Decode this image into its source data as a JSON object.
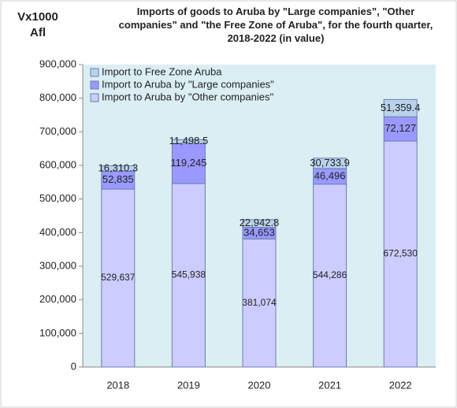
{
  "chart_data": {
    "type": "stacked_bar",
    "title": "Imports of goods to Aruba by \"Large companies\", \"Other companies\" and \"the Free Zone of Aruba\", for the fourth quarter, 2018-2022 (in value)",
    "y_label": "Vx1000 Afl",
    "categories": [
      "2018",
      "2019",
      "2020",
      "2021",
      "2022"
    ],
    "series": [
      {
        "name": "Import to Aruba by \"Other companies\"",
        "color": "#ccccff",
        "values": [
          529637,
          545938,
          381074,
          544286,
          672530
        ],
        "value_labels": [
          "529,637",
          "545,938",
          "381,074",
          "544,286",
          "672,530"
        ]
      },
      {
        "name": "Import to Aruba by \"Large companies\"",
        "color": "#9999ff",
        "values": [
          52835,
          119245,
          34653,
          46496,
          72127
        ],
        "value_labels": [
          "52,835",
          "119,245",
          "34,653",
          "46,496",
          "72,127"
        ]
      },
      {
        "name": "Import to Free Zone Aruba",
        "color": "#b9d3ea",
        "values": [
          16310.3,
          11498.5,
          22942.8,
          30733.9,
          51359.4
        ],
        "value_labels": [
          "16,310.3",
          "11,498.5",
          "22,942.8",
          "30,733.9",
          "51,359.4"
        ]
      }
    ],
    "ylim": [
      0,
      900000
    ],
    "yticks": [
      0,
      {
        "value": 100000,
        "label": "100,000"
      },
      {
        "value": 200000,
        "label": "200,000"
      },
      {
        "value": 300000,
        "label": "300,000"
      },
      {
        "value": 400000,
        "label": "400,000"
      },
      {
        "value": 500000,
        "label": "500,000"
      },
      {
        "value": 600000,
        "label": "600,000"
      },
      {
        "value": 700000,
        "label": "700,000"
      },
      {
        "value": 800000,
        "label": "800,000"
      },
      {
        "value": 900000,
        "label": "900,000"
      }
    ],
    "plot_background": "#dbeef4",
    "legend": "upper left"
  }
}
